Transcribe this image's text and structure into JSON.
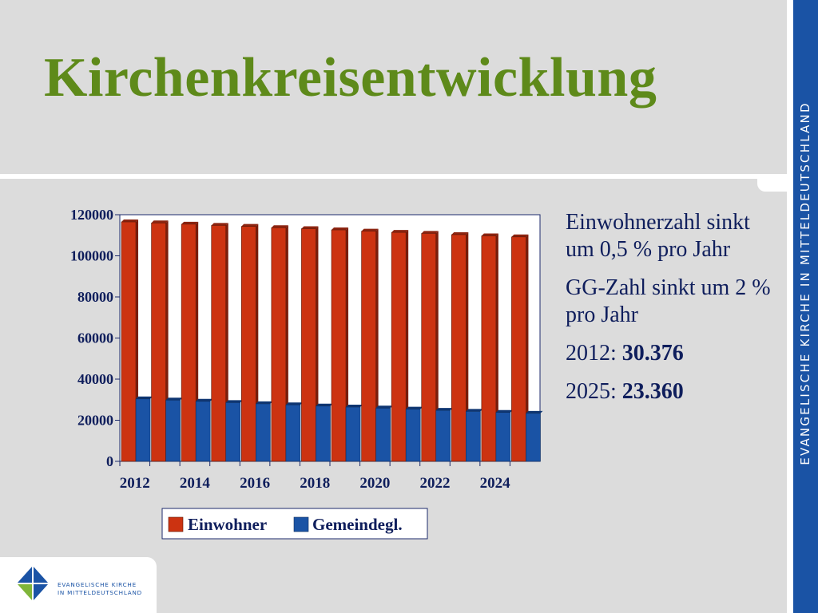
{
  "slide": {
    "title": "Kirchenkreisentwicklung",
    "side_band_text": "EVANGELISCHE KIRCHE IN MITTELDEUTSCHLAND",
    "logo_line1": "EVANGELISCHE KIRCHE",
    "logo_line2": "IN MITTELDEUTSCHLAND"
  },
  "notes": {
    "para1": "Einwohnerzahl sinkt um 0,5 % pro Jahr",
    "para2": "GG-Zahl sinkt um 2 % pro Jahr",
    "stat1_label": "2012: ",
    "stat1_value": "30.376",
    "stat2_label": "2025: ",
    "stat2_value": "23.360"
  },
  "colors": {
    "title": "#5e8a1a",
    "series_einwohner": "#cc3311",
    "series_gemeindegl": "#1a53a5",
    "band": "#1a53a5",
    "text": "#0f1e5c"
  },
  "chart_data": {
    "type": "bar",
    "categories": [
      "2012",
      "2013",
      "2014",
      "2015",
      "2016",
      "2017",
      "2018",
      "2019",
      "2020",
      "2021",
      "2022",
      "2023",
      "2024",
      "2025"
    ],
    "x_tick_labels": [
      "2012",
      "2014",
      "2016",
      "2018",
      "2020",
      "2022",
      "2024"
    ],
    "series": [
      {
        "name": "Einwohner",
        "values": [
          116500,
          116000,
          115400,
          114800,
          114300,
          113700,
          113200,
          112600,
          112000,
          111400,
          110900,
          110300,
          109700,
          109200
        ]
      },
      {
        "name": "Gemeindegl.",
        "values": [
          30376,
          29800,
          29200,
          28600,
          28000,
          27500,
          26900,
          26400,
          25900,
          25400,
          24800,
          24300,
          23800,
          23360
        ]
      }
    ],
    "ylim": [
      0,
      120000
    ],
    "y_ticks": [
      0,
      20000,
      40000,
      60000,
      80000,
      100000,
      120000
    ],
    "legend": "bottom",
    "grid": false,
    "style": "3d"
  }
}
